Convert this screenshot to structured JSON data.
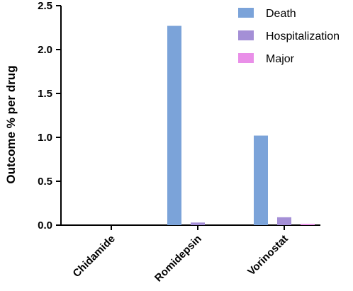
{
  "chart_data": {
    "type": "bar",
    "title": "",
    "xlabel": "",
    "ylabel": "Outcome % per drug",
    "ylim": [
      0,
      2.5
    ],
    "yticks": [
      "0.0",
      "0.5",
      "1.0",
      "1.5",
      "2.0",
      "2.5"
    ],
    "categories": [
      "Chidamide",
      "Romidepsin",
      "Vorinostat"
    ],
    "series": [
      {
        "name": "Death",
        "color": "#7ba3d9",
        "values": [
          0,
          2.27,
          1.02
        ]
      },
      {
        "name": "Hospitalization",
        "color": "#a48fd6",
        "values": [
          0,
          0.03,
          0.09
        ]
      },
      {
        "name": "Major",
        "color": "#e98fe8",
        "values": [
          0,
          0.0,
          0.015
        ]
      }
    ],
    "legend_position": "top-right",
    "grid": false
  }
}
